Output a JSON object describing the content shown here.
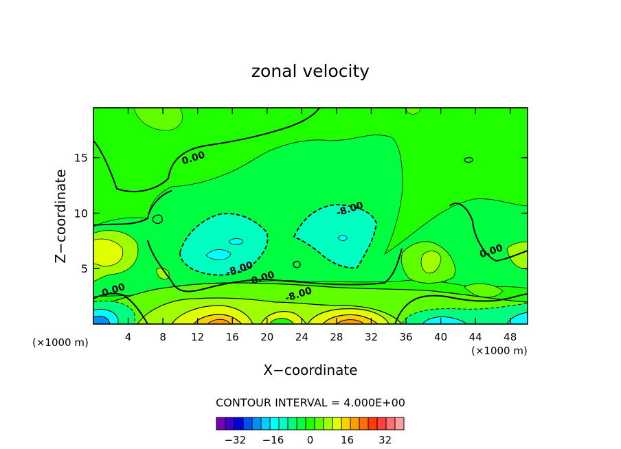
{
  "chart_data": {
    "type": "contour",
    "title": "zonal velocity",
    "xlabel": "X−coordinate",
    "ylabel": "Z−coordinate",
    "x_units_left": "(×1000 m)",
    "x_units_right": "(×1000 m)",
    "xlim": [
      0,
      50
    ],
    "ylim": [
      0,
      19.5
    ],
    "x_ticks": [
      4,
      8,
      12,
      16,
      20,
      24,
      28,
      32,
      36,
      40,
      44,
      48
    ],
    "y_ticks": [
      5,
      10,
      15
    ],
    "contour_interval_label": "CONTOUR INTERVAL = 4.000E+00",
    "contour_interval": 4,
    "contour_labels": [
      {
        "text": "0.00",
        "x": 11.5,
        "y": 15.0
      },
      {
        "text": "-8.00",
        "x": 29.5,
        "y": 10.4
      },
      {
        "text": "-8.00",
        "x": 16.8,
        "y": 5.0
      },
      {
        "text": "0.00",
        "x": 19.5,
        "y": 4.2
      },
      {
        "text": "-8.00",
        "x": 23.6,
        "y": 2.7
      },
      {
        "text": "0.00",
        "x": 2.3,
        "y": 3.1
      },
      {
        "text": "0.00",
        "x": 45.8,
        "y": 6.6
      }
    ],
    "colorbar": {
      "ticks": [
        "−32",
        "−16",
        "0",
        "16",
        "32"
      ],
      "colors": [
        "#7a00b4",
        "#3c00cc",
        "#0000e0",
        "#0050f0",
        "#0090f8",
        "#00d0ff",
        "#00ffff",
        "#00ffc0",
        "#00ff80",
        "#00ff40",
        "#20ff00",
        "#60ff00",
        "#a0ff00",
        "#e0ff00",
        "#ffd000",
        "#ffa000",
        "#ff7000",
        "#ff3c00",
        "#ff4040",
        "#ff7070",
        "#ffa0a0"
      ]
    }
  }
}
